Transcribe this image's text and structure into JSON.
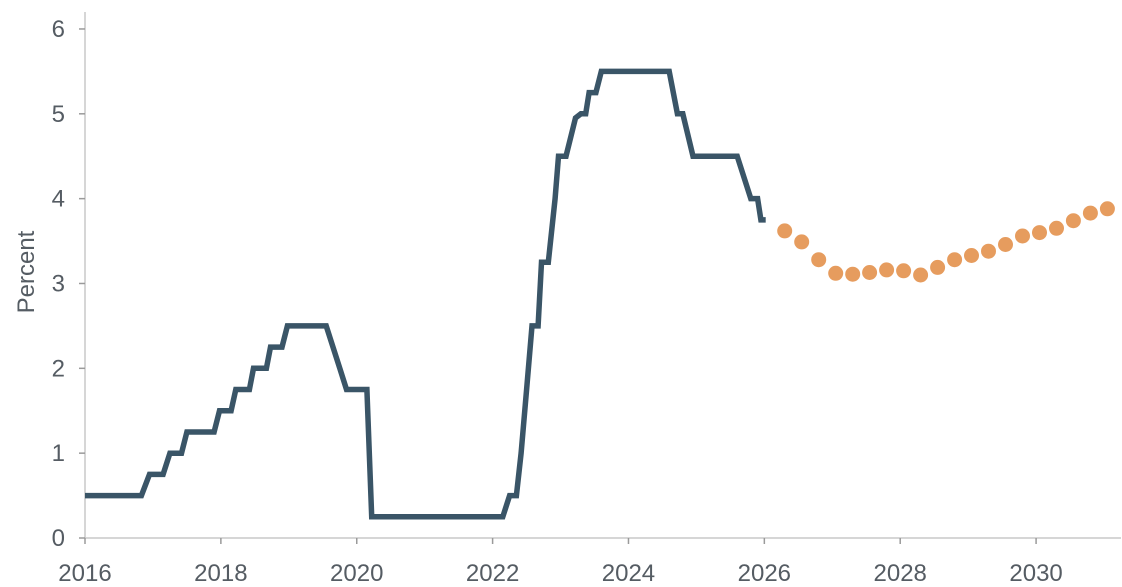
{
  "chart_data": {
    "type": "line",
    "title": "",
    "xlabel": "",
    "ylabel": "Percent",
    "xlim": [
      2016,
      2031.25
    ],
    "ylim": [
      0,
      6.2
    ],
    "grid": false,
    "legend": "none",
    "x_ticks": [
      "2016",
      "2018",
      "2020",
      "2022",
      "2024",
      "2026",
      "2028",
      "2030"
    ],
    "y_ticks": [
      "0",
      "1",
      "2",
      "3",
      "4",
      "5",
      "6"
    ],
    "series": [
      {
        "style": "step-line",
        "color": "#3a5567",
        "points": [
          [
            2016.0,
            0.5
          ],
          [
            2016.83,
            0.5
          ],
          [
            2016.95,
            0.75
          ],
          [
            2017.15,
            0.75
          ],
          [
            2017.25,
            1.0
          ],
          [
            2017.42,
            1.0
          ],
          [
            2017.5,
            1.25
          ],
          [
            2017.9,
            1.25
          ],
          [
            2017.98,
            1.5
          ],
          [
            2018.15,
            1.5
          ],
          [
            2018.22,
            1.75
          ],
          [
            2018.42,
            1.75
          ],
          [
            2018.48,
            2.0
          ],
          [
            2018.67,
            2.0
          ],
          [
            2018.73,
            2.25
          ],
          [
            2018.9,
            2.25
          ],
          [
            2018.98,
            2.5
          ],
          [
            2019.55,
            2.5
          ],
          [
            2019.75,
            2.0
          ],
          [
            2019.85,
            1.75
          ],
          [
            2020.15,
            1.75
          ],
          [
            2020.22,
            0.25
          ],
          [
            2022.15,
            0.25
          ],
          [
            2022.25,
            0.5
          ],
          [
            2022.35,
            0.5
          ],
          [
            2022.42,
            1.0
          ],
          [
            2022.5,
            1.75
          ],
          [
            2022.58,
            2.5
          ],
          [
            2022.67,
            2.5
          ],
          [
            2022.72,
            3.25
          ],
          [
            2022.82,
            3.25
          ],
          [
            2022.92,
            4.0
          ],
          [
            2022.97,
            4.5
          ],
          [
            2023.08,
            4.5
          ],
          [
            2023.22,
            4.95
          ],
          [
            2023.3,
            5.0
          ],
          [
            2023.37,
            5.0
          ],
          [
            2023.42,
            5.25
          ],
          [
            2023.52,
            5.25
          ],
          [
            2023.6,
            5.5
          ],
          [
            2024.6,
            5.5
          ],
          [
            2024.72,
            5.0
          ],
          [
            2024.8,
            5.0
          ],
          [
            2024.95,
            4.5
          ],
          [
            2025.6,
            4.5
          ],
          [
            2025.8,
            4.0
          ],
          [
            2025.9,
            4.0
          ],
          [
            2025.95,
            3.75
          ],
          [
            2026.02,
            3.75
          ]
        ]
      },
      {
        "style": "dots",
        "color": "#e69c5e",
        "points": [
          [
            2026.3,
            3.62
          ],
          [
            2026.55,
            3.49
          ],
          [
            2026.8,
            3.28
          ],
          [
            2027.05,
            3.12
          ],
          [
            2027.3,
            3.11
          ],
          [
            2027.55,
            3.13
          ],
          [
            2027.8,
            3.16
          ],
          [
            2028.05,
            3.15
          ],
          [
            2028.3,
            3.1
          ],
          [
            2028.55,
            3.19
          ],
          [
            2028.8,
            3.28
          ],
          [
            2029.05,
            3.33
          ],
          [
            2029.3,
            3.38
          ],
          [
            2029.55,
            3.46
          ],
          [
            2029.8,
            3.56
          ],
          [
            2030.05,
            3.6
          ],
          [
            2030.3,
            3.65
          ],
          [
            2030.55,
            3.74
          ],
          [
            2030.8,
            3.83
          ],
          [
            2031.05,
            3.88
          ]
        ]
      }
    ]
  }
}
